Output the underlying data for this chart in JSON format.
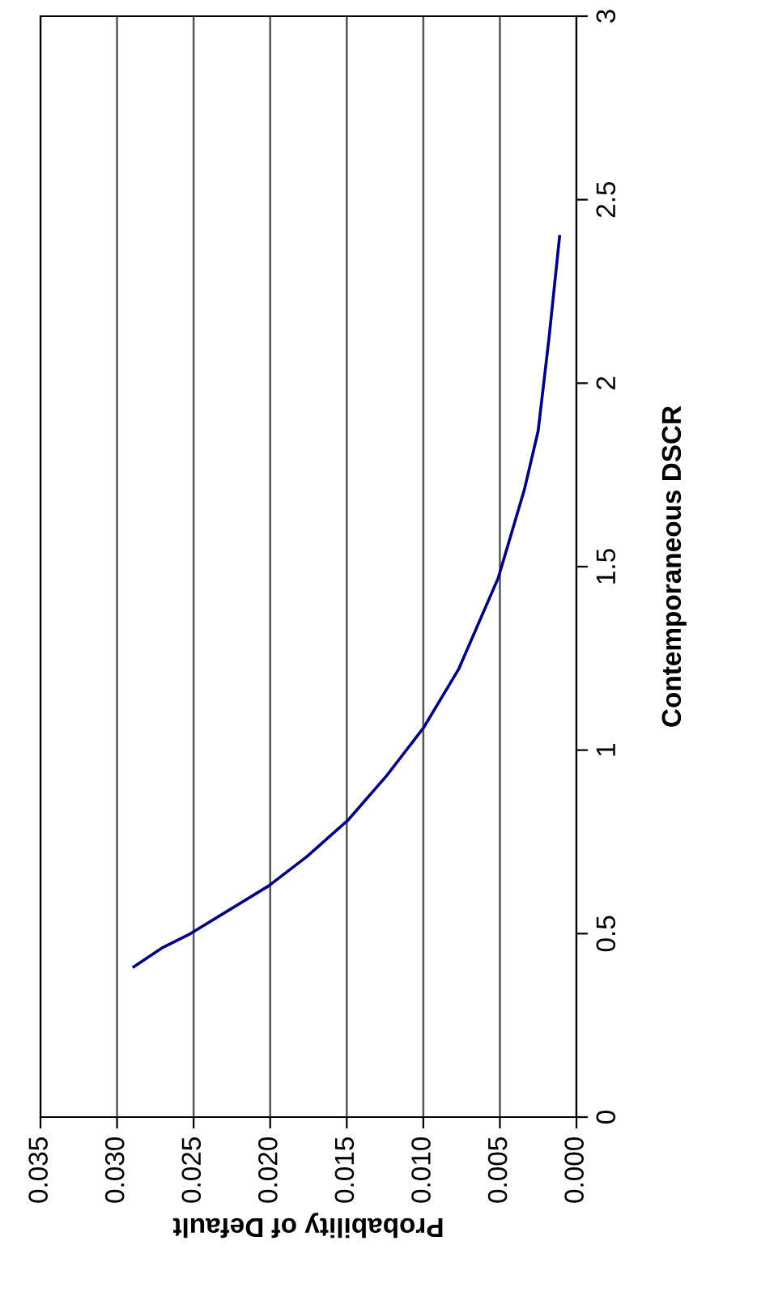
{
  "chart_data": {
    "type": "line",
    "xlabel": "Probability of Default",
    "ylabel": "Contemporaneous DSCR",
    "x": [
      0.0289,
      0.0271,
      0.0252,
      0.0201,
      0.0176,
      0.0149,
      0.0124,
      0.01,
      0.0077,
      0.0051,
      0.0034,
      0.0025,
      0.0018,
      0.0011
    ],
    "series": [
      {
        "color": "#000080",
        "values": [
          0.41,
          0.46,
          0.5,
          0.63,
          0.71,
          0.81,
          0.93,
          1.06,
          1.22,
          1.47,
          1.71,
          1.87,
          2.12,
          2.4
        ]
      }
    ],
    "ylim": [
      0,
      3
    ],
    "yticks": [
      0,
      0.5,
      1,
      1.5,
      2,
      2.5,
      3
    ],
    "xlim": [
      0.035,
      0
    ],
    "xticks": [
      {
        "value": 0,
        "label": "0.000"
      },
      {
        "value": 0.005,
        "label": "0.005"
      },
      {
        "value": 0.01,
        "label": "0.010"
      },
      {
        "value": 0.015,
        "label": "0.015"
      },
      {
        "value": 0.02,
        "label": "0.020"
      },
      {
        "value": 0.025,
        "label": "0.025"
      },
      {
        "value": 0.03,
        "label": "0.030"
      },
      {
        "value": 0.035,
        "label": "0.035"
      }
    ],
    "grid": "x",
    "legend": false,
    "marker": "none",
    "line_style": "solid"
  }
}
